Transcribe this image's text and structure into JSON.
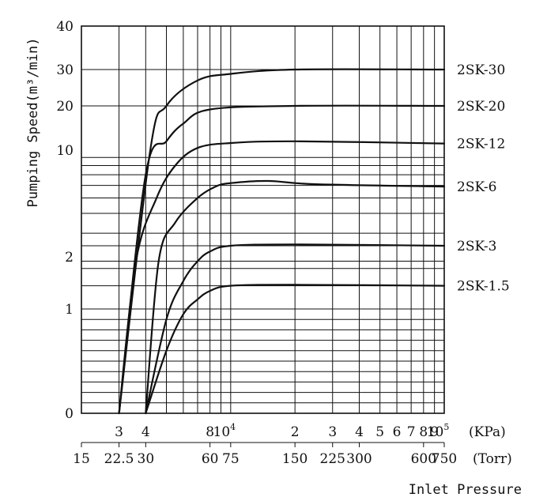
{
  "chart_data": {
    "type": "line",
    "ylabel": "Pumping Speed(m³/min)",
    "xlabel": "Inlet Pressure",
    "y_ticks": [
      "0",
      "1",
      "2",
      "10",
      "20",
      "30",
      "40"
    ],
    "x_kpa_unit": "(KPa)",
    "x_torr_unit": "(Torr)",
    "x_kpa_ticks": [
      {
        "label": "3",
        "kpa": 3
      },
      {
        "label": "4",
        "kpa": 4
      },
      {
        "label": "8",
        "kpa": 8
      },
      {
        "label": "10",
        "sup": "4",
        "kpa": 10
      },
      {
        "label": "2",
        "kpa": 20
      },
      {
        "label": "3",
        "kpa": 30
      },
      {
        "label": "4",
        "kpa": 40
      },
      {
        "label": "5",
        "kpa": 50
      },
      {
        "label": "6",
        "kpa": 60
      },
      {
        "label": "7",
        "kpa": 70
      },
      {
        "label": "8",
        "kpa": 80
      },
      {
        "label": "9",
        "kpa": 90
      },
      {
        "label": "10",
        "sup": "5",
        "kpa": 100
      }
    ],
    "x_torr_ticks": [
      {
        "label": "15",
        "torr": 15
      },
      {
        "label": "22.5",
        "torr": 22.5
      },
      {
        "label": "30",
        "torr": 30
      },
      {
        "label": "60",
        "torr": 60
      },
      {
        "label": "75",
        "torr": 75
      },
      {
        "label": "150",
        "torr": 150
      },
      {
        "label": "225",
        "torr": 225
      },
      {
        "label": "300",
        "torr": 300
      },
      {
        "label": "600",
        "torr": 600
      },
      {
        "label": "750",
        "torr": 750
      }
    ],
    "series": [
      {
        "name": "2SK-30",
        "points": [
          [
            3,
            0
          ],
          [
            4.2,
            10
          ],
          [
            5,
            20
          ],
          [
            7,
            27
          ],
          [
            10,
            28.8
          ],
          [
            20,
            30
          ],
          [
            100,
            30
          ]
        ]
      },
      {
        "name": "2SK-20",
        "points": [
          [
            3,
            0
          ],
          [
            4,
            7
          ],
          [
            5,
            12
          ],
          [
            6,
            16
          ],
          [
            8,
            19.2
          ],
          [
            20,
            20
          ],
          [
            100,
            20
          ]
        ]
      },
      {
        "name": "2SK-12",
        "points": [
          [
            3,
            0
          ],
          [
            3.6,
            2
          ],
          [
            4.5,
            5
          ],
          [
            5.5,
            8
          ],
          [
            7,
            10.5
          ],
          [
            10,
            11.6
          ],
          [
            20,
            12
          ],
          [
            100,
            11.5
          ]
        ]
      },
      {
        "name": "2SK-6",
        "points": [
          [
            4,
            0
          ],
          [
            4.6,
            2
          ],
          [
            5.5,
            3.5
          ],
          [
            7,
            5
          ],
          [
            8.5,
            5.9
          ],
          [
            10,
            6.2
          ],
          [
            15,
            6.4
          ],
          [
            25,
            6.1
          ],
          [
            100,
            5.9
          ]
        ]
      },
      {
        "name": "2SK-3",
        "points": [
          [
            4,
            0
          ],
          [
            5,
            0.9
          ],
          [
            6,
            1.5
          ],
          [
            7,
            2
          ],
          [
            8,
            2.3
          ],
          [
            10,
            2.5
          ],
          [
            20,
            2.55
          ],
          [
            100,
            2.5
          ]
        ]
      },
      {
        "name": "2SK-1.5",
        "points": [
          [
            4,
            0
          ],
          [
            5,
            0.6
          ],
          [
            6,
            0.95
          ],
          [
            7,
            1.15
          ],
          [
            8,
            1.3
          ],
          [
            10,
            1.4
          ],
          [
            20,
            1.42
          ],
          [
            100,
            1.4
          ]
        ]
      }
    ]
  }
}
